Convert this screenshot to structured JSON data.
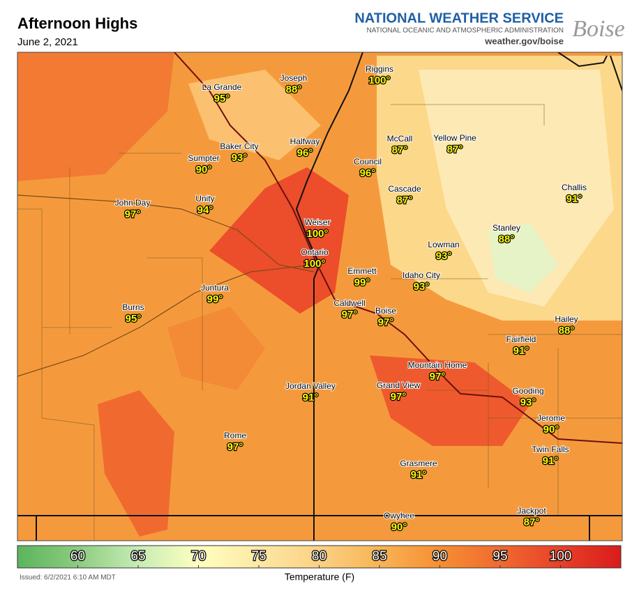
{
  "header": {
    "title": "Afternoon Highs",
    "date": "June 2, 2021",
    "agency": "NATIONAL WEATHER SERVICE",
    "agency_sub": "NATIONAL OCEANIC AND ATMOSPHERIC ADMINISTRATION",
    "website": "weather.gov/boise",
    "office": "Boise"
  },
  "cities": [
    {
      "name": "La Grande",
      "temp": "95°"
    },
    {
      "name": "Joseph",
      "temp": "88°"
    },
    {
      "name": "Riggins",
      "temp": "100°"
    },
    {
      "name": "Halfway",
      "temp": "96°"
    },
    {
      "name": "Baker City",
      "temp": "93°"
    },
    {
      "name": "McCall",
      "temp": "87°"
    },
    {
      "name": "Yellow Pine",
      "temp": "87°"
    },
    {
      "name": "Sumpter",
      "temp": "90°"
    },
    {
      "name": "Council",
      "temp": "96°"
    },
    {
      "name": "Cascade",
      "temp": "87°"
    },
    {
      "name": "Challis",
      "temp": "91°"
    },
    {
      "name": "John Day",
      "temp": "97°"
    },
    {
      "name": "Unity",
      "temp": "94°"
    },
    {
      "name": "Weiser",
      "temp": "100°"
    },
    {
      "name": "Stanley",
      "temp": "88°"
    },
    {
      "name": "Lowman",
      "temp": "93°"
    },
    {
      "name": "Ontario",
      "temp": "100°"
    },
    {
      "name": "Emmett",
      "temp": "99°"
    },
    {
      "name": "Idaho City",
      "temp": "93°"
    },
    {
      "name": "Juntura",
      "temp": "99°"
    },
    {
      "name": "Caldwell",
      "temp": "97°"
    },
    {
      "name": "Boise",
      "temp": "97°"
    },
    {
      "name": "Burns",
      "temp": "95°"
    },
    {
      "name": "Hailey",
      "temp": "88°"
    },
    {
      "name": "Fairfield",
      "temp": "91°"
    },
    {
      "name": "Mountain Home",
      "temp": "97°"
    },
    {
      "name": "Grand View",
      "temp": "97°"
    },
    {
      "name": "Jordan Valley",
      "temp": "91°"
    },
    {
      "name": "Gooding",
      "temp": "93°"
    },
    {
      "name": "Jerome",
      "temp": "90°"
    },
    {
      "name": "Rome",
      "temp": "97°"
    },
    {
      "name": "Twin Falls",
      "temp": "91°"
    },
    {
      "name": "Grasmere",
      "temp": "91°"
    },
    {
      "name": "Jackpot",
      "temp": "87°"
    },
    {
      "name": "Owyhee",
      "temp": "90°"
    }
  ],
  "colorbar": {
    "title": "Temperature (F)",
    "range": [
      55,
      105
    ],
    "ticks": [
      60,
      65,
      70,
      75,
      80,
      85,
      90,
      95,
      100
    ],
    "colors": [
      "#5cb45c",
      "#8ccc80",
      "#c6ecb4",
      "#ffffc0",
      "#fde8a4",
      "#fbd184",
      "#f8b456",
      "#f58f32",
      "#f06a30",
      "#e84028",
      "#d91c1c"
    ]
  },
  "footer": {
    "issued": "Issued: 6/2/2021 6:10 AM MDT"
  }
}
